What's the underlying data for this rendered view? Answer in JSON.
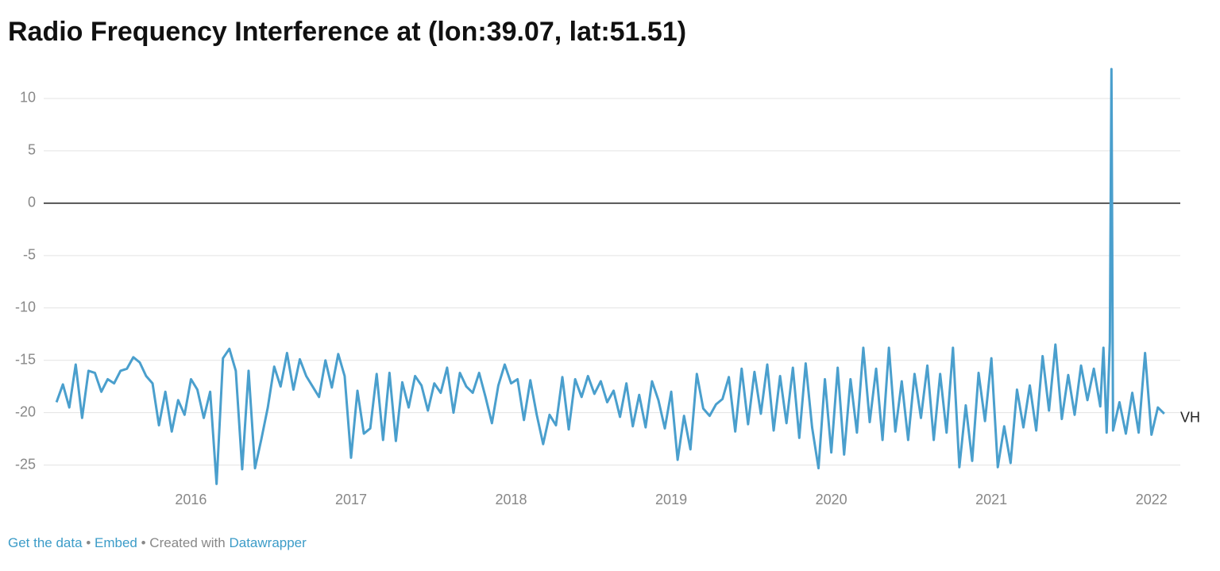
{
  "chart_data": {
    "type": "line",
    "title": "Radio Frequency Interference at (lon:39.07, lat:51.51)",
    "x": [
      2015.16,
      2015.2,
      2015.24,
      2015.28,
      2015.32,
      2015.36,
      2015.4,
      2015.44,
      2015.48,
      2015.52,
      2015.56,
      2015.6,
      2015.64,
      2015.68,
      2015.72,
      2015.76,
      2015.8,
      2015.84,
      2015.88,
      2015.92,
      2015.96,
      2016.0,
      2016.04,
      2016.08,
      2016.12,
      2016.16,
      2016.2,
      2016.24,
      2016.28,
      2016.32,
      2016.36,
      2016.4,
      2016.44,
      2016.48,
      2016.52,
      2016.56,
      2016.6,
      2016.64,
      2016.68,
      2016.72,
      2016.76,
      2016.8,
      2016.84,
      2016.88,
      2016.92,
      2016.96,
      2017.0,
      2017.04,
      2017.08,
      2017.12,
      2017.16,
      2017.2,
      2017.24,
      2017.28,
      2017.32,
      2017.36,
      2017.4,
      2017.44,
      2017.48,
      2017.52,
      2017.56,
      2017.6,
      2017.64,
      2017.68,
      2017.72,
      2017.76,
      2017.8,
      2017.84,
      2017.88,
      2017.92,
      2017.96,
      2018.0,
      2018.04,
      2018.08,
      2018.12,
      2018.16,
      2018.2,
      2018.24,
      2018.28,
      2018.32,
      2018.36,
      2018.4,
      2018.44,
      2018.48,
      2018.52,
      2018.56,
      2018.6,
      2018.64,
      2018.68,
      2018.72,
      2018.76,
      2018.8,
      2018.84,
      2018.88,
      2018.92,
      2018.96,
      2019.0,
      2019.04,
      2019.08,
      2019.12,
      2019.16,
      2019.2,
      2019.24,
      2019.28,
      2019.32,
      2019.36,
      2019.4,
      2019.44,
      2019.48,
      2019.52,
      2019.56,
      2019.6,
      2019.64,
      2019.68,
      2019.72,
      2019.76,
      2019.8,
      2019.84,
      2019.88,
      2019.92,
      2019.96,
      2020.0,
      2020.04,
      2020.08,
      2020.12,
      2020.16,
      2020.2,
      2020.24,
      2020.28,
      2020.32,
      2020.36,
      2020.4,
      2020.44,
      2020.48,
      2020.52,
      2020.56,
      2020.6,
      2020.64,
      2020.68,
      2020.72,
      2020.76,
      2020.8,
      2020.84,
      2020.88,
      2020.92,
      2020.96,
      2021.0,
      2021.04,
      2021.08,
      2021.12,
      2021.16,
      2021.2,
      2021.24,
      2021.28,
      2021.32,
      2021.36,
      2021.4,
      2021.44,
      2021.48,
      2021.52,
      2021.56,
      2021.6,
      2021.64,
      2021.68,
      2021.7,
      2021.72,
      2021.74,
      2021.75,
      2021.76,
      2021.8,
      2021.84,
      2021.88,
      2021.92,
      2021.96,
      2022.0,
      2022.04,
      2022.08
    ],
    "series": [
      {
        "name": "VH",
        "color": "#4a9fcd",
        "values": [
          -19,
          -17.3,
          -19.5,
          -15.4,
          -20.5,
          -16,
          -16.2,
          -18,
          -16.8,
          -17.2,
          -16,
          -15.8,
          -14.7,
          -15.2,
          -16.5,
          -17.2,
          -21.2,
          -18,
          -21.8,
          -18.8,
          -20.2,
          -16.8,
          -17.8,
          -20.5,
          -18,
          -26.8,
          -14.8,
          -13.9,
          -16,
          -25.4,
          -16,
          -25.3,
          -22.5,
          -19.5,
          -15.6,
          -17.5,
          -14.3,
          -17.8,
          -14.9,
          -16.5,
          -17.5,
          -18.5,
          -15,
          -17.6,
          -14.4,
          -16.5,
          -24.3,
          -17.9,
          -22,
          -21.5,
          -16.3,
          -22.6,
          -16.2,
          -22.7,
          -17.1,
          -19.5,
          -16.5,
          -17.4,
          -19.8,
          -17.2,
          -18.1,
          -15.7,
          -20,
          -16.2,
          -17.5,
          -18.1,
          -16.2,
          -18.5,
          -21,
          -17.4,
          -15.4,
          -17.2,
          -16.8,
          -20.7,
          -16.9,
          -20.2,
          -23,
          -20.2,
          -21.2,
          -16.6,
          -21.6,
          -16.8,
          -18.5,
          -16.5,
          -18.2,
          -17,
          -19,
          -17.9,
          -20.4,
          -17.2,
          -21.3,
          -18.3,
          -21.4,
          -17,
          -18.8,
          -21.5,
          -18,
          -24.5,
          -20.3,
          -23.5,
          -16.3,
          -19.6,
          -20.3,
          -19.2,
          -18.7,
          -16.6,
          -21.8,
          -15.8,
          -21.1,
          -16.1,
          -20.1,
          -15.4,
          -21.7,
          -16.5,
          -21,
          -15.7,
          -22.4,
          -15.3,
          -21.4,
          -25.3,
          -16.8,
          -23.8,
          -15.7,
          -24,
          -16.8,
          -21.9,
          -13.8,
          -20.9,
          -15.8,
          -22.6,
          -13.8,
          -21.8,
          -17,
          -22.6,
          -16.3,
          -20.5,
          -15.5,
          -22.6,
          -16.3,
          -21.9,
          -13.8,
          -25.2,
          -19.3,
          -24.6,
          -16.2,
          -20.8,
          -14.8,
          -25.2,
          -21.3,
          -24.8,
          -17.8,
          -21.4,
          -17.4,
          -21.7,
          -14.6,
          -19.8,
          -13.5,
          -20.6,
          -16.4,
          -20.2,
          -15.5,
          -18.8,
          -15.8,
          -19.4,
          -13.8,
          -21.9,
          -13.2,
          12.8,
          -21.7,
          -19,
          -22,
          -18.1,
          -21.9,
          -14.3,
          -22.1,
          -19.5,
          -20.1
        ]
      }
    ],
    "xlim": [
      2015.08,
      2022.18
    ],
    "xticks": [
      2016,
      2017,
      2018,
      2019,
      2020,
      2021,
      2022
    ],
    "ylim": [
      -27,
      13
    ],
    "yticks": [
      -25,
      -20,
      -15,
      -10,
      -5,
      0,
      5,
      10
    ],
    "grid": true,
    "footer": {
      "get_data": "Get the data",
      "separator": "•",
      "embed": "Embed",
      "created_with": "Created with",
      "credit": "Datawrapper"
    }
  }
}
